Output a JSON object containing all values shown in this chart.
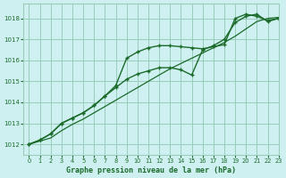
{
  "title": "Graphe pression niveau de la mer (hPa)",
  "bg_color": "#cff0f0",
  "grid_color": "#99ccbb",
  "line_color": "#1a6b2a",
  "xlim": [
    -0.5,
    23
  ],
  "ylim": [
    1011.5,
    1018.7
  ],
  "yticks": [
    1012,
    1013,
    1014,
    1015,
    1016,
    1017,
    1018
  ],
  "xticks": [
    0,
    1,
    2,
    3,
    4,
    5,
    6,
    7,
    8,
    9,
    10,
    11,
    12,
    13,
    14,
    15,
    16,
    17,
    18,
    19,
    20,
    21,
    22,
    23
  ],
  "series": [
    {
      "y": [
        1012.0,
        1012.2,
        1012.5,
        1013.0,
        1013.25,
        1013.5,
        1013.85,
        1014.3,
        1014.8,
        1016.1,
        1016.4,
        1016.6,
        1016.7,
        1016.7,
        1016.65,
        1016.6,
        1016.55,
        1016.65,
        1016.75,
        1018.0,
        1018.2,
        1018.1,
        1017.9,
        1018.0
      ],
      "marker": "+",
      "lw": 1.0
    },
    {
      "y": [
        1012.0,
        1012.2,
        1012.5,
        1013.0,
        1013.25,
        1013.5,
        1013.85,
        1014.3,
        1014.7,
        1015.1,
        1015.35,
        1015.5,
        1015.65,
        1015.65,
        1015.55,
        1015.3,
        1016.5,
        1016.7,
        1017.0,
        1017.8,
        1018.1,
        1018.2,
        1017.85,
        1018.0
      ],
      "marker": "+",
      "lw": 1.0
    },
    {
      "y": [
        1012.0,
        1012.15,
        1012.3,
        1012.65,
        1012.95,
        1013.2,
        1013.5,
        1013.8,
        1014.1,
        1014.4,
        1014.7,
        1015.0,
        1015.3,
        1015.6,
        1015.85,
        1016.1,
        1016.35,
        1016.6,
        1016.85,
        1017.15,
        1017.5,
        1017.85,
        1018.0,
        1018.05
      ],
      "marker": null,
      "lw": 0.9
    }
  ]
}
